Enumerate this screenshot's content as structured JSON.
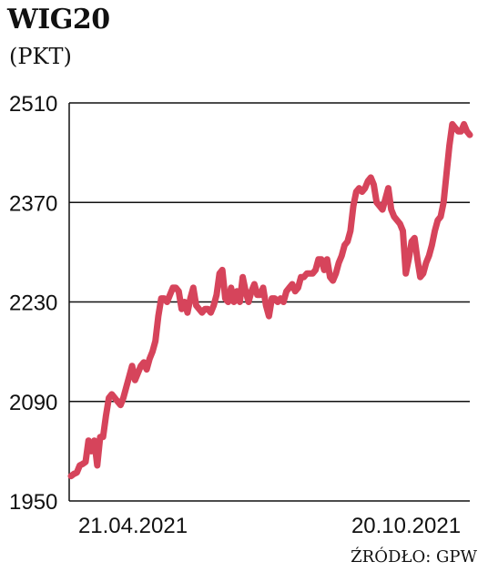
{
  "title": "WIG20",
  "subtitle": "(PKT)",
  "source": "ŹRÓDŁO: GPW",
  "colors": {
    "line": "#d6445b",
    "grid": "#111111",
    "text": "#111111"
  },
  "chart_data": {
    "type": "line",
    "title": "WIG20",
    "ylabel": "(PKT)",
    "ylim": [
      1950,
      2510
    ],
    "yticks": [
      1950,
      2090,
      2230,
      2370,
      2510
    ],
    "xtick_labels": [
      "21.04.2021",
      "20.10.2021"
    ],
    "grid": true,
    "series": [
      {
        "values": [
          1985,
          1988,
          1990,
          2000,
          2002,
          2005,
          2035,
          2020,
          2035,
          2000,
          2040,
          2040,
          2070,
          2095,
          2100,
          2095,
          2090,
          2085,
          2095,
          2110,
          2125,
          2140,
          2120,
          2130,
          2140,
          2145,
          2135,
          2150,
          2160,
          2175,
          2210,
          2235,
          2235,
          2230,
          2240,
          2250,
          2250,
          2245,
          2220,
          2230,
          2215,
          2235,
          2250,
          2225,
          2220,
          2215,
          2220,
          2220,
          2215,
          2225,
          2240,
          2270,
          2275,
          2235,
          2230,
          2250,
          2230,
          2245,
          2230,
          2265,
          2245,
          2230,
          2245,
          2255,
          2240,
          2240,
          2250,
          2225,
          2210,
          2235,
          2235,
          2230,
          2235,
          2230,
          2245,
          2250,
          2255,
          2245,
          2250,
          2265,
          2265,
          2270,
          2270,
          2270,
          2275,
          2290,
          2290,
          2275,
          2290,
          2265,
          2260,
          2270,
          2285,
          2295,
          2310,
          2315,
          2330,
          2365,
          2385,
          2390,
          2385,
          2390,
          2400,
          2405,
          2395,
          2370,
          2365,
          2360,
          2375,
          2390,
          2360,
          2350,
          2345,
          2340,
          2330,
          2270,
          2290,
          2315,
          2320,
          2290,
          2265,
          2270,
          2285,
          2295,
          2310,
          2330,
          2345,
          2350,
          2370,
          2410,
          2450,
          2480,
          2475,
          2470,
          2470,
          2480,
          2470,
          2465
        ]
      }
    ]
  }
}
